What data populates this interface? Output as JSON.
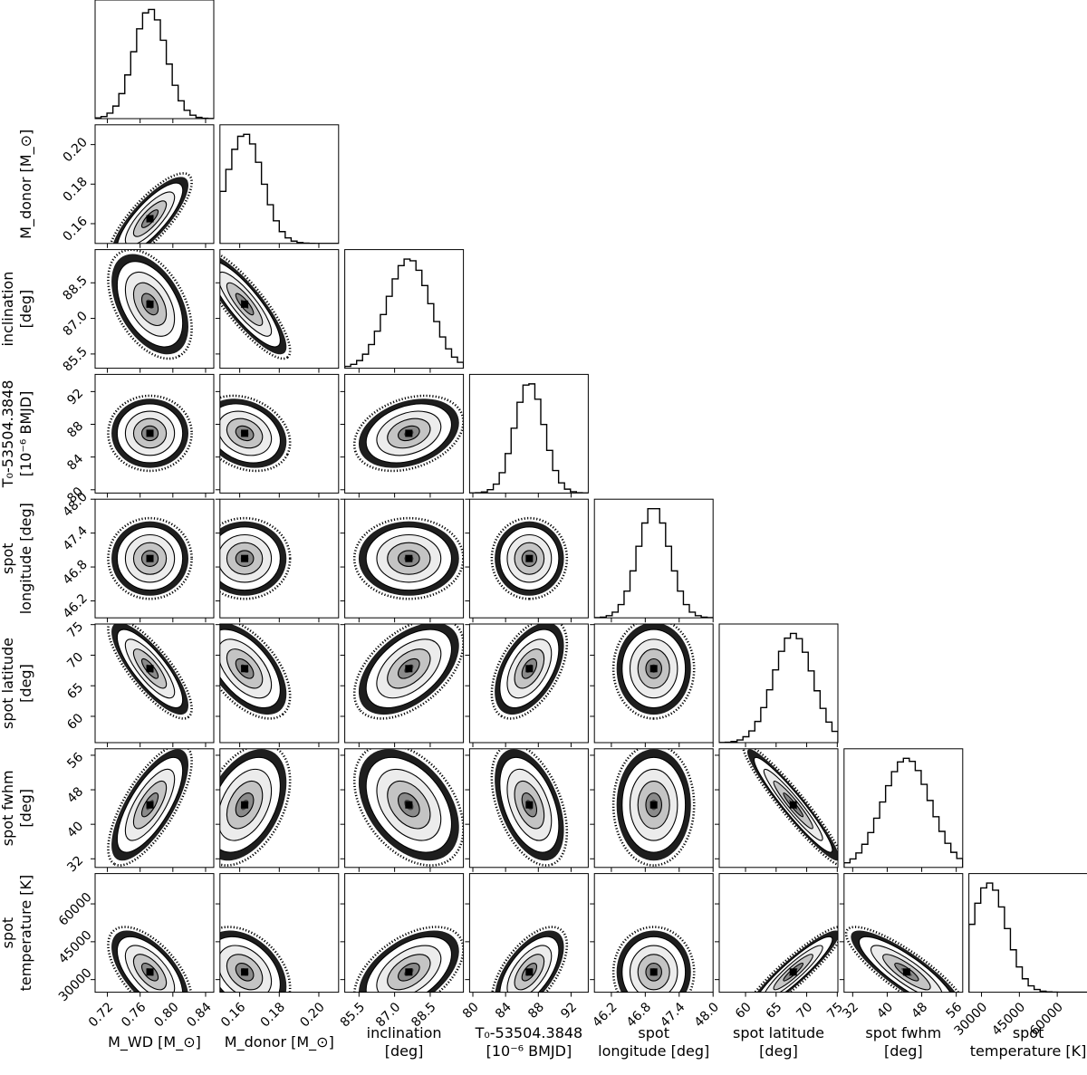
{
  "chart_data": {
    "type": "corner",
    "parameters": [
      {
        "key": "mwd",
        "xlabel": [
          "M_WD [M_⊙]"
        ],
        "ylabel": [],
        "range": [
          0.705,
          0.85
        ],
        "ticks": [
          0.72,
          0.76,
          0.8,
          0.84
        ],
        "tick_labels": [
          "0.72",
          "0.76",
          "0.80",
          "0.84"
        ],
        "mean": 0.772,
        "sd": 0.02
      },
      {
        "key": "mdonor",
        "xlabel": [
          "M_donor [M_⊙]"
        ],
        "ylabel": [
          "M_donor [M_⊙]"
        ],
        "range": [
          0.15,
          0.21
        ],
        "ticks": [
          0.16,
          0.18,
          0.2
        ],
        "tick_labels": [
          "0.16",
          "0.18",
          "0.20"
        ],
        "mean": 0.1625,
        "sd": 0.009
      },
      {
        "key": "incl",
        "xlabel": [
          "inclination",
          "[deg]"
        ],
        "ylabel": [
          "inclination",
          "[deg]"
        ],
        "range": [
          84.9,
          89.9
        ],
        "ticks": [
          85.5,
          87.0,
          88.5
        ],
        "tick_labels": [
          "85.5",
          "87.0",
          "88.5"
        ],
        "mean": 87.6,
        "sd": 0.9
      },
      {
        "key": "t0",
        "xlabel": [
          "T₀-53504.3848",
          "[10⁻⁶ BMJD]"
        ],
        "ylabel": [
          "T₀-53504.3848",
          "[10⁻⁶ BMJD]"
        ],
        "range": [
          79.6,
          94.1
        ],
        "ticks": [
          80,
          84,
          88,
          92
        ],
        "tick_labels": [
          "80",
          "84",
          "88",
          "92"
        ],
        "mean": 86.9,
        "sd": 1.8
      },
      {
        "key": "lon",
        "xlabel": [
          "spot",
          "longitude [deg]"
        ],
        "ylabel": [
          "spot",
          "longitude [deg]"
        ],
        "range": [
          45.9,
          48.0
        ],
        "ticks": [
          46.2,
          46.8,
          47.4,
          48.0
        ],
        "tick_labels": [
          "46.2",
          "46.8",
          "47.4",
          "48.0"
        ],
        "mean": 46.95,
        "sd": 0.28
      },
      {
        "key": "lat",
        "xlabel": [
          "spot latitude",
          "[deg]"
        ],
        "ylabel": [
          "spot latitude",
          "[deg]"
        ],
        "range": [
          55.7,
          75.1
        ],
        "ticks": [
          60,
          65,
          70,
          75
        ],
        "tick_labels": [
          "60",
          "65",
          "70",
          "75"
        ],
        "mean": 67.8,
        "sd": 3.2
      },
      {
        "key": "fwhm",
        "xlabel": [
          "spot fwhm",
          "[deg]"
        ],
        "ylabel": [
          "spot fwhm",
          "[deg]"
        ],
        "range": [
          30.0,
          57.5
        ],
        "ticks": [
          32,
          40,
          48,
          56
        ],
        "tick_labels": [
          "32",
          "40",
          "48",
          "56"
        ],
        "mean": 44.5,
        "sd": 5.5
      },
      {
        "key": "temp",
        "xlabel": [
          "spot",
          "temperature [K]"
        ],
        "ylabel": [
          "spot",
          "temperature [K]"
        ],
        "range": [
          25000,
          72000
        ],
        "ticks": [
          30000,
          45000,
          60000
        ],
        "tick_labels": [
          "30000",
          "45000",
          "60000"
        ],
        "mean": 33000,
        "sd": 7000
      }
    ],
    "correlations": [
      [
        1,
        0.8,
        -0.45,
        0.0,
        0.0,
        -0.8,
        0.72,
        -0.6
      ],
      [
        0.8,
        1,
        -0.85,
        -0.25,
        0.0,
        -0.55,
        0.4,
        -0.35
      ],
      [
        -0.45,
        -0.85,
        1,
        0.3,
        0.0,
        0.5,
        -0.4,
        0.5
      ],
      [
        0.0,
        -0.25,
        0.3,
        1,
        0.0,
        0.5,
        -0.45,
        0.6
      ],
      [
        0.0,
        0.0,
        0.0,
        0.0,
        1,
        0.0,
        0.0,
        0.0
      ],
      [
        -0.8,
        -0.55,
        0.5,
        0.5,
        0.0,
        1,
        -0.95,
        0.92
      ],
      [
        0.72,
        0.4,
        -0.4,
        -0.45,
        0.0,
        -0.95,
        1,
        -0.85
      ],
      [
        -0.6,
        -0.35,
        0.5,
        0.6,
        0.0,
        0.92,
        -0.85,
        1
      ]
    ],
    "histogram_bins": 20,
    "contour_levels": [
      0.5,
      1.0,
      1.5,
      2.0
    ],
    "grid": false,
    "legend": "none"
  }
}
